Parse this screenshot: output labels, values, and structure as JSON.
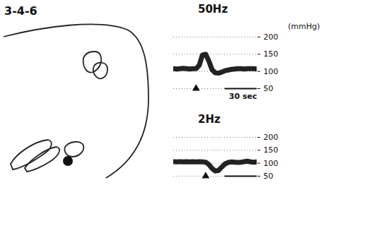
{
  "figure_label": "3-4-6",
  "chart_data": [
    {
      "type": "line",
      "title": "50Hz",
      "y_label": "(mmHg)",
      "x": [
        0,
        3,
        6,
        9,
        12,
        15,
        18,
        21,
        24,
        27,
        30,
        33,
        36,
        39,
        42,
        45,
        48,
        51,
        54,
        57,
        60,
        63,
        66,
        69,
        72,
        75,
        78
      ],
      "values": [
        108,
        107,
        108,
        109,
        108,
        107,
        108,
        108,
        118,
        148,
        150,
        130,
        105,
        96,
        95,
        98,
        102,
        104,
        106,
        107,
        108,
        108,
        107,
        108,
        108,
        108,
        107
      ],
      "color": "#222222",
      "xlim": [
        0,
        78
      ],
      "ylim": [
        50,
        200
      ],
      "yticks": [
        50,
        100,
        150,
        200
      ],
      "grid": true,
      "tick_labels": "y",
      "stimulus_x": 21,
      "scale_bar": {
        "length": 30,
        "label": "30 sec"
      }
    },
    {
      "type": "line",
      "title": "2Hz",
      "x": [
        0,
        3,
        6,
        9,
        12,
        15,
        18,
        21,
        24,
        27,
        30,
        33,
        36,
        39,
        42,
        45,
        48,
        51,
        54,
        57,
        60,
        63,
        66,
        69,
        72,
        75,
        78
      ],
      "values": [
        106,
        105,
        106,
        105,
        106,
        105,
        106,
        105,
        106,
        105,
        104,
        95,
        80,
        70,
        72,
        85,
        97,
        103,
        105,
        104,
        103,
        104,
        106,
        108,
        105,
        104,
        105
      ],
      "color": "#222222",
      "xlim": [
        0,
        78
      ],
      "ylim": [
        50,
        200
      ],
      "yticks": [
        50,
        100,
        150,
        200
      ],
      "grid": true,
      "tick_labels": "y",
      "stimulus_x": 30,
      "scale_bar": {
        "length": 30
      }
    }
  ]
}
